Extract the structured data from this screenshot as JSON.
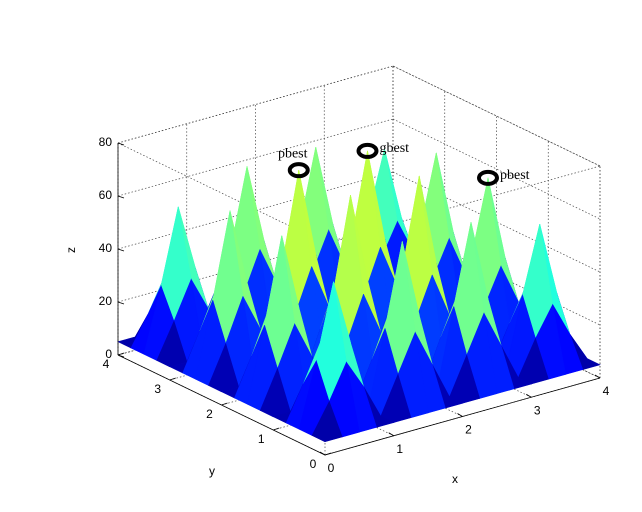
{
  "chart_data": {
    "type": "surface",
    "colormap": "jet",
    "grid": true,
    "xlabel": "x",
    "ylabel": "y",
    "zlabel": "z",
    "x": [
      0,
      0.25,
      0.5,
      0.75,
      1,
      1.25,
      1.5,
      1.75,
      2,
      2.25,
      2.5,
      2.75,
      3,
      3.25,
      3.5,
      3.75,
      4
    ],
    "y": [
      0,
      0.25,
      0.5,
      0.75,
      1,
      1.25,
      1.5,
      1.75,
      2,
      2.25,
      2.5,
      2.75,
      3,
      3.25,
      3.5,
      3.75,
      4
    ],
    "z": [
      [
        5,
        5,
        5,
        5,
        5,
        5,
        5,
        5,
        5,
        5,
        5,
        5,
        5,
        5,
        5,
        5,
        5
      ],
      [
        5,
        16,
        29,
        18,
        5,
        19,
        33,
        19,
        5,
        19,
        33,
        19,
        5,
        18,
        29,
        16,
        5
      ],
      [
        5,
        29,
        57,
        32,
        5,
        34,
        65,
        35,
        5,
        35,
        65,
        34,
        5,
        32,
        57,
        29,
        5
      ],
      [
        5,
        18,
        32,
        19,
        5,
        20,
        36,
        21,
        5,
        21,
        36,
        20,
        5,
        19,
        32,
        18,
        5
      ],
      [
        5,
        5,
        5,
        5,
        5,
        5,
        5,
        5,
        5,
        5,
        5,
        5,
        5,
        5,
        5,
        5,
        5
      ],
      [
        5,
        19,
        34,
        20,
        5,
        21,
        38,
        22,
        5,
        22,
        38,
        21,
        5,
        20,
        34,
        19,
        5
      ],
      [
        5,
        33,
        65,
        36,
        5,
        38,
        73,
        39,
        5,
        39,
        73,
        38,
        5,
        36,
        65,
        33,
        5
      ],
      [
        5,
        19,
        35,
        21,
        5,
        22,
        39,
        22,
        5,
        22,
        39,
        22,
        5,
        21,
        35,
        19,
        5
      ],
      [
        5,
        5,
        5,
        5,
        5,
        5,
        5,
        5,
        5,
        5,
        5,
        5,
        5,
        5,
        5,
        5,
        5
      ],
      [
        5,
        19,
        35,
        21,
        5,
        22,
        39,
        22,
        5,
        22,
        39,
        22,
        5,
        21,
        35,
        19,
        5
      ],
      [
        5,
        33,
        65,
        36,
        5,
        38,
        73,
        39,
        5,
        39,
        73,
        38,
        5,
        36,
        65,
        33,
        5
      ],
      [
        5,
        19,
        34,
        20,
        5,
        21,
        38,
        22,
        5,
        22,
        38,
        21,
        5,
        20,
        34,
        19,
        5
      ],
      [
        5,
        5,
        5,
        5,
        5,
        5,
        5,
        5,
        5,
        5,
        5,
        5,
        5,
        5,
        5,
        5,
        5
      ],
      [
        5,
        18,
        32,
        19,
        5,
        20,
        36,
        21,
        5,
        21,
        36,
        20,
        5,
        19,
        32,
        18,
        5
      ],
      [
        5,
        29,
        57,
        32,
        5,
        34,
        65,
        35,
        5,
        35,
        65,
        34,
        5,
        32,
        57,
        29,
        5
      ],
      [
        5,
        16,
        29,
        18,
        5,
        19,
        33,
        19,
        5,
        19,
        33,
        19,
        5,
        18,
        29,
        16,
        5
      ],
      [
        5,
        5,
        5,
        5,
        5,
        5,
        5,
        5,
        5,
        5,
        5,
        5,
        5,
        5,
        5,
        5,
        5
      ]
    ],
    "xlim": [
      0,
      4
    ],
    "ylim": [
      0,
      4
    ],
    "zlim": [
      0,
      80
    ],
    "xticks": [
      0,
      1,
      2,
      3,
      4
    ],
    "yticks": [
      0,
      1,
      2,
      3,
      4
    ],
    "zticks": [
      0,
      20,
      40,
      60,
      80
    ],
    "annotations": [
      {
        "text": "pbest",
        "x": 1.5,
        "y": 2.5,
        "z": 73
      },
      {
        "text": "gbest",
        "x": 2.5,
        "y": 2.5,
        "z": 73
      },
      {
        "text": "pbest",
        "x": 3.5,
        "y": 1.5,
        "z": 65
      }
    ]
  }
}
